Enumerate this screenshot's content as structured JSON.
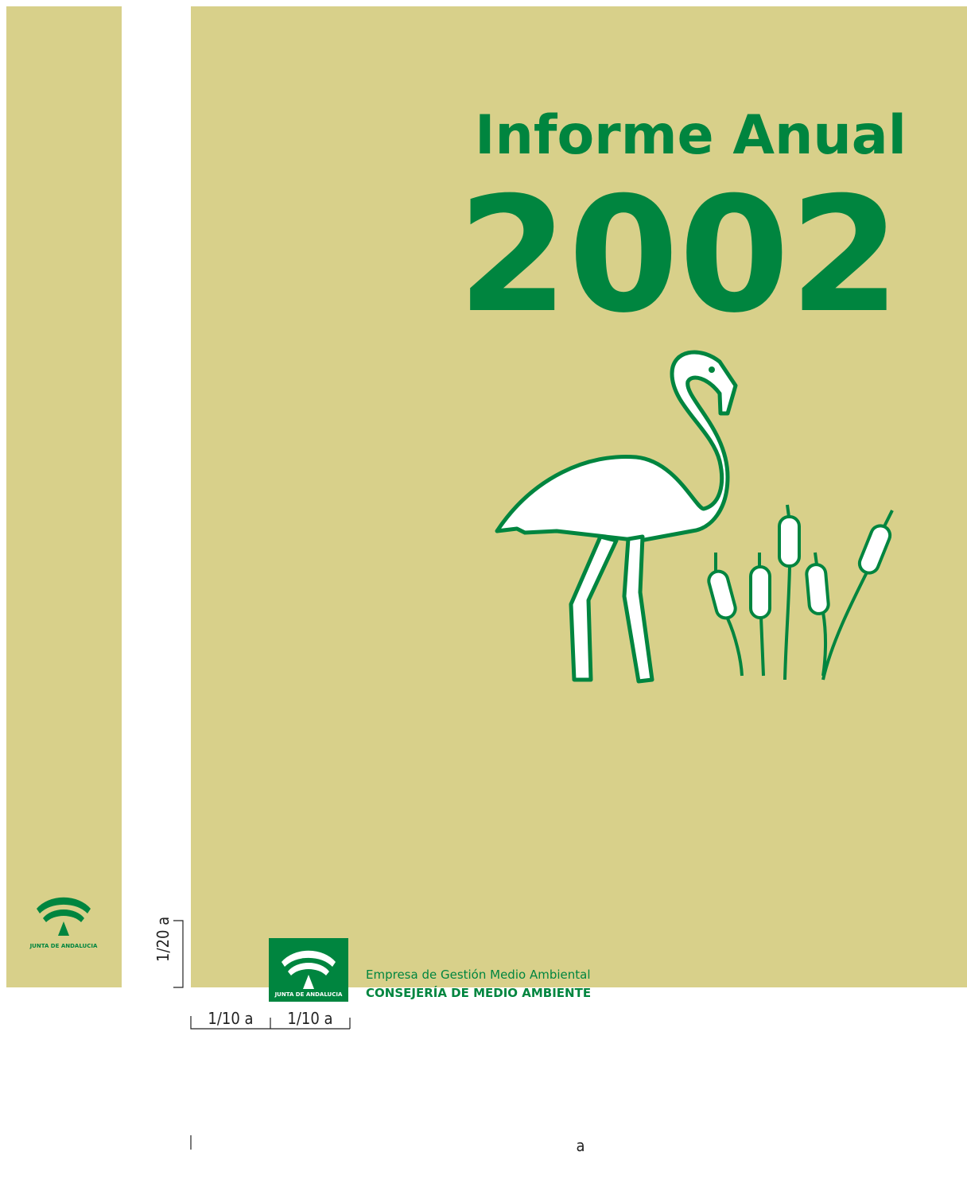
{
  "cover": {
    "title": "Informe Anual",
    "year": "2002",
    "logo_text": "JUNTA DE ANDALUCIA",
    "publisher_line1": "Empresa de Gestión Medio Ambiental",
    "publisher_line2": "CONSEJERÍA DE MEDIO AMBIENTE"
  },
  "spine": {
    "logo_text": "JUNTA DE ANDALUCIA"
  },
  "dimensions": {
    "margin_bottom": "1/20 a",
    "margin_left_1": "1/10 a",
    "margin_left_2": "1/10 a",
    "width": "a"
  }
}
